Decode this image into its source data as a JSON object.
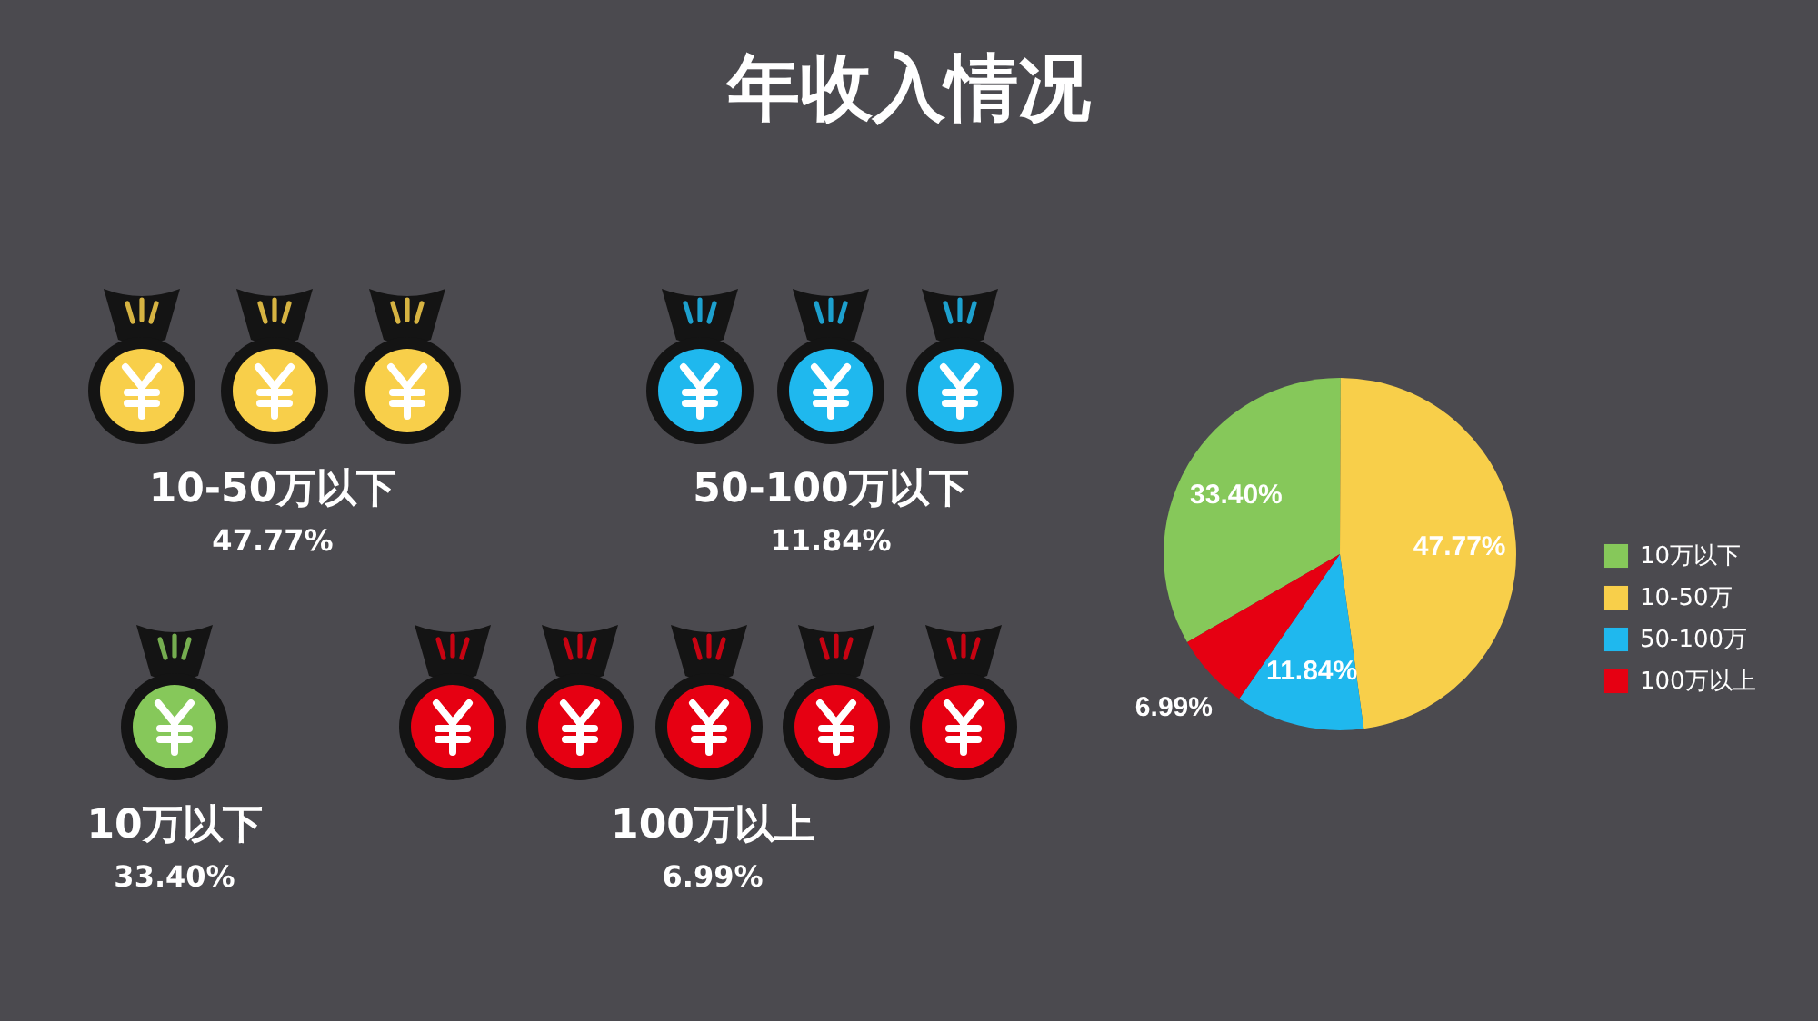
{
  "chart_data": {
    "type": "pie",
    "title": "年收入情况",
    "categories": [
      "10万以下",
      "10-50万",
      "50-100万",
      "100万以上"
    ],
    "values": [
      33.4,
      47.77,
      11.84,
      6.99
    ],
    "colors": [
      "#86c85a",
      "#f8cf4a",
      "#1fb8ee",
      "#e60012"
    ],
    "value_labels": [
      "33.40%",
      "47.77%",
      "11.84%",
      "6.99%"
    ],
    "legend": "right",
    "annotations": [
      "10-50万以下",
      "47.77%",
      "50-100万以下",
      "11.84%",
      "10万以下",
      "33.40%",
      "100万以上",
      "6.99%"
    ]
  }
}
